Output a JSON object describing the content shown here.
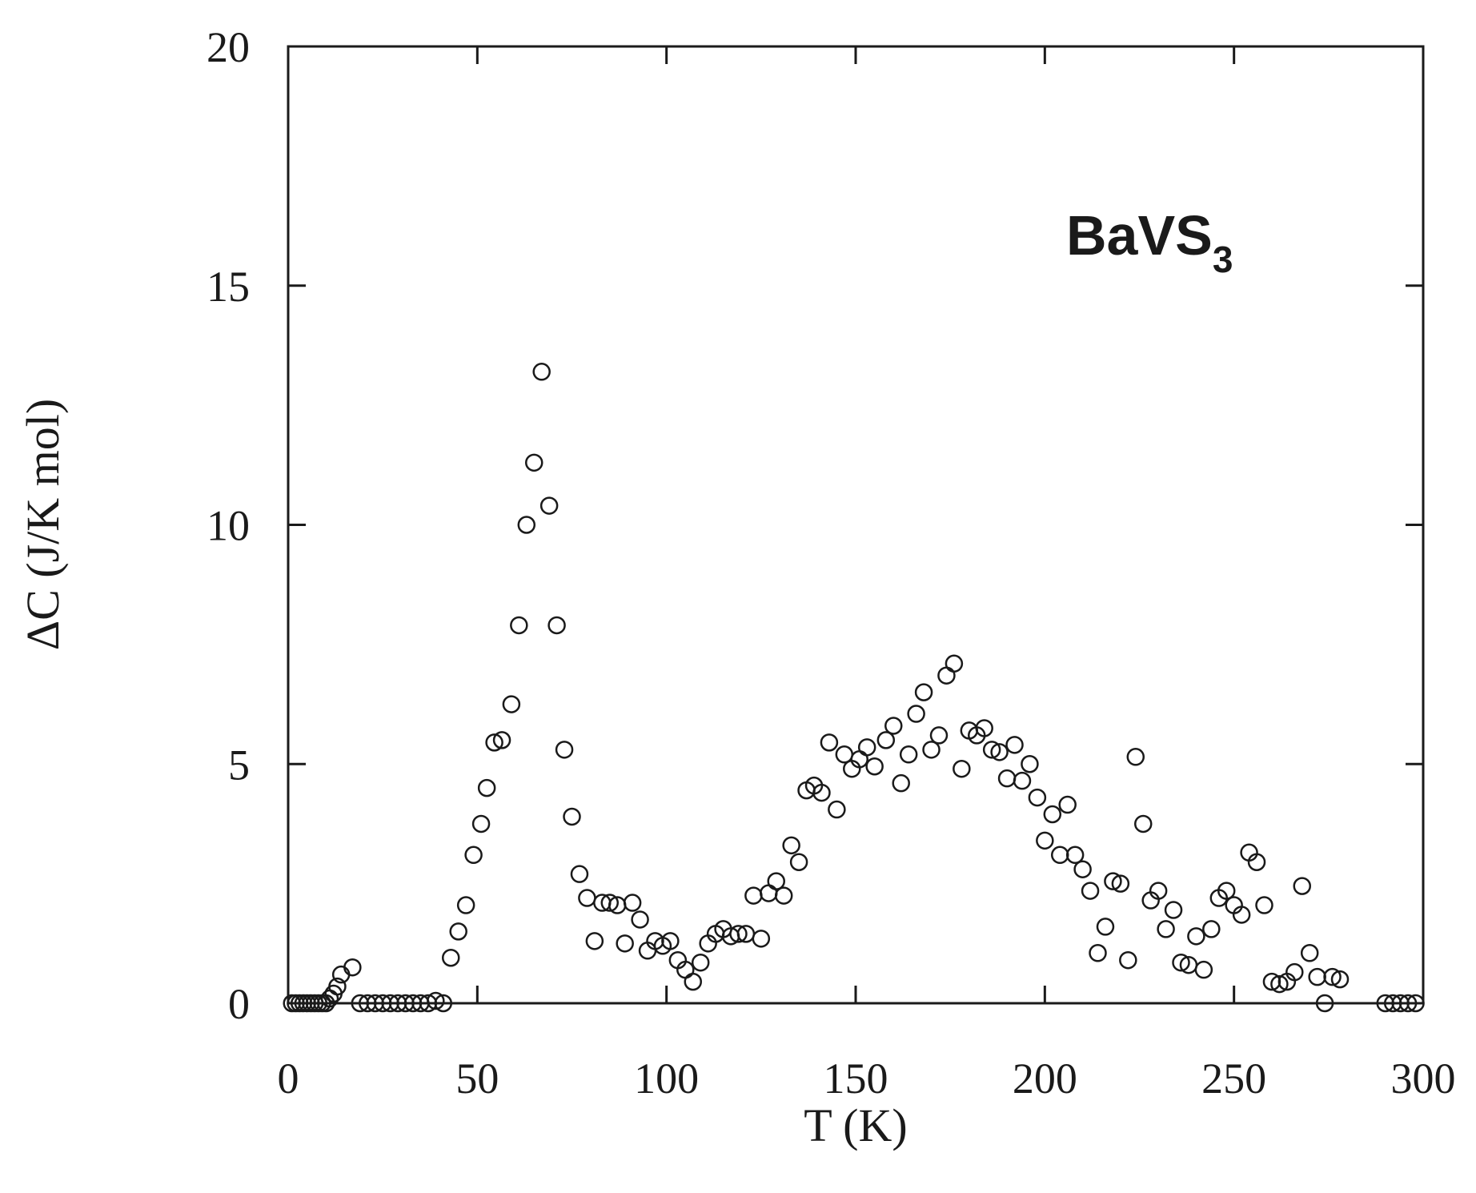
{
  "chart_data": {
    "type": "scatter",
    "title": "",
    "xlabel": "T (K)",
    "ylabel": "ΔC (J/K mol)",
    "xlim": [
      0,
      300
    ],
    "ylim": [
      0,
      20
    ],
    "xticks": [
      0,
      50,
      100,
      150,
      200,
      250,
      300
    ],
    "yticks": [
      0,
      5,
      10,
      15,
      20
    ],
    "grid": false,
    "marker": "open-circle",
    "annotation": {
      "base": "BaVS",
      "subscript": "3"
    },
    "series": [
      {
        "points": [
          [
            1,
            0
          ],
          [
            2,
            0
          ],
          [
            3,
            0
          ],
          [
            4,
            0
          ],
          [
            5,
            0
          ],
          [
            6,
            0
          ],
          [
            7,
            0
          ],
          [
            8,
            0
          ],
          [
            9,
            0
          ],
          [
            10,
            0
          ],
          [
            11,
            0.1
          ],
          [
            12,
            0.2
          ],
          [
            13,
            0.35
          ],
          [
            14,
            0.6
          ],
          [
            17,
            0.75
          ],
          [
            19,
            0
          ],
          [
            21,
            0
          ],
          [
            23,
            0
          ],
          [
            25,
            0
          ],
          [
            27,
            0
          ],
          [
            29,
            0
          ],
          [
            31,
            0
          ],
          [
            33,
            0
          ],
          [
            35,
            0
          ],
          [
            37,
            0
          ],
          [
            39,
            0.05
          ],
          [
            41,
            0
          ],
          [
            43,
            0.95
          ],
          [
            45,
            1.5
          ],
          [
            47,
            2.05
          ],
          [
            49,
            3.1
          ],
          [
            51,
            3.75
          ],
          [
            52.5,
            4.5
          ],
          [
            54.5,
            5.45
          ],
          [
            56.5,
            5.5
          ],
          [
            59,
            6.25
          ],
          [
            61,
            7.9
          ],
          [
            63,
            10
          ],
          [
            65,
            11.3
          ],
          [
            67,
            13.2
          ],
          [
            69,
            10.4
          ],
          [
            71,
            7.9
          ],
          [
            73,
            5.3
          ],
          [
            75,
            3.9
          ],
          [
            77,
            2.7
          ],
          [
            79,
            2.2
          ],
          [
            81,
            1.3
          ],
          [
            83,
            2.1
          ],
          [
            85,
            2.1
          ],
          [
            87,
            2.05
          ],
          [
            89,
            1.25
          ],
          [
            91,
            2.1
          ],
          [
            93,
            1.75
          ],
          [
            95,
            1.1
          ],
          [
            97,
            1.3
          ],
          [
            99,
            1.2
          ],
          [
            101,
            1.3
          ],
          [
            103,
            0.9
          ],
          [
            105,
            0.7
          ],
          [
            107,
            0.45
          ],
          [
            109,
            0.85
          ],
          [
            111,
            1.25
          ],
          [
            113,
            1.45
          ],
          [
            115,
            1.55
          ],
          [
            117,
            1.4
          ],
          [
            119,
            1.45
          ],
          [
            121,
            1.45
          ],
          [
            123,
            2.25
          ],
          [
            125,
            1.35
          ],
          [
            127,
            2.3
          ],
          [
            129,
            2.55
          ],
          [
            131,
            2.25
          ],
          [
            133,
            3.3
          ],
          [
            135,
            2.95
          ],
          [
            137,
            4.45
          ],
          [
            139,
            4.55
          ],
          [
            141,
            4.4
          ],
          [
            143,
            5.45
          ],
          [
            145,
            4.05
          ],
          [
            147,
            5.2
          ],
          [
            149,
            4.9
          ],
          [
            151,
            5.1
          ],
          [
            153,
            5.35
          ],
          [
            155,
            4.95
          ],
          [
            158,
            5.5
          ],
          [
            160,
            5.8
          ],
          [
            162,
            4.6
          ],
          [
            164,
            5.2
          ],
          [
            166,
            6.05
          ],
          [
            168,
            6.5
          ],
          [
            170,
            5.3
          ],
          [
            172,
            5.6
          ],
          [
            174,
            6.85
          ],
          [
            176,
            7.1
          ],
          [
            178,
            4.9
          ],
          [
            180,
            5.7
          ],
          [
            182,
            5.6
          ],
          [
            184,
            5.75
          ],
          [
            186,
            5.3
          ],
          [
            188,
            5.25
          ],
          [
            190,
            4.7
          ],
          [
            192,
            5.4
          ],
          [
            194,
            4.65
          ],
          [
            196,
            5
          ],
          [
            198,
            4.3
          ],
          [
            200,
            3.4
          ],
          [
            202,
            3.95
          ],
          [
            204,
            3.1
          ],
          [
            206,
            4.15
          ],
          [
            208,
            3.1
          ],
          [
            210,
            2.8
          ],
          [
            212,
            2.35
          ],
          [
            214,
            1.05
          ],
          [
            216,
            1.6
          ],
          [
            218,
            2.55
          ],
          [
            220,
            2.5
          ],
          [
            222,
            0.9
          ],
          [
            224,
            5.15
          ],
          [
            226,
            3.75
          ],
          [
            228,
            2.15
          ],
          [
            230,
            2.35
          ],
          [
            232,
            1.55
          ],
          [
            234,
            1.95
          ],
          [
            236,
            0.85
          ],
          [
            238,
            0.8
          ],
          [
            240,
            1.4
          ],
          [
            242,
            0.7
          ],
          [
            244,
            1.55
          ],
          [
            246,
            2.2
          ],
          [
            248,
            2.35
          ],
          [
            250,
            2.05
          ],
          [
            252,
            1.85
          ],
          [
            254,
            3.15
          ],
          [
            256,
            2.95
          ],
          [
            258,
            2.05
          ],
          [
            260,
            0.45
          ],
          [
            262,
            0.4
          ],
          [
            264,
            0.45
          ],
          [
            266,
            0.65
          ],
          [
            268,
            2.45
          ],
          [
            270,
            1.05
          ],
          [
            272,
            0.55
          ],
          [
            274,
            0
          ],
          [
            276,
            0.55
          ],
          [
            278,
            0.5
          ],
          [
            290,
            0
          ],
          [
            292,
            0
          ],
          [
            294,
            0
          ],
          [
            296,
            0
          ],
          [
            298,
            0
          ]
        ]
      }
    ]
  }
}
